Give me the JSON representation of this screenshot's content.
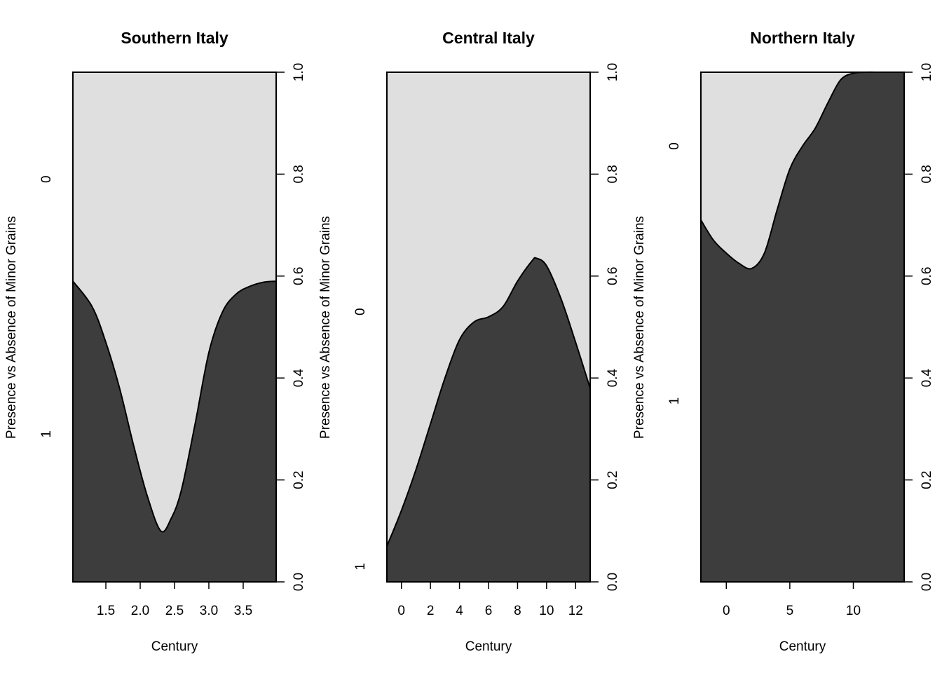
{
  "colors": {
    "absence_fill": "#dfdfdf",
    "presence_fill": "#3d3d3d",
    "outline": "#000000"
  },
  "chart_data": [
    {
      "type": "area",
      "title": "Southern Italy",
      "xlabel": "Century",
      "ylabel": "Presence vs Absence of Minor Grains",
      "xlim": [
        1.02,
        3.98
      ],
      "xticks": [
        "1.5",
        "2.0",
        "2.5",
        "3.0",
        "3.5"
      ],
      "ylim": [
        0,
        1
      ],
      "right_ticks": [
        "0.0",
        "0.2",
        "0.4",
        "0.6",
        "0.8",
        "1.0"
      ],
      "category_labels": [
        {
          "label": "0",
          "y": 0.79
        },
        {
          "label": "1",
          "y": 0.29
        }
      ],
      "x": [
        1.02,
        1.3,
        1.5,
        1.7,
        1.9,
        2.1,
        2.3,
        2.45,
        2.6,
        2.8,
        3.0,
        3.2,
        3.4,
        3.6,
        3.8,
        3.98
      ],
      "values": [
        0.59,
        0.54,
        0.47,
        0.38,
        0.27,
        0.17,
        0.1,
        0.124,
        0.18,
        0.31,
        0.45,
        0.53,
        0.565,
        0.58,
        0.588,
        0.59
      ]
    },
    {
      "type": "area",
      "title": "Central Italy",
      "xlabel": "Century",
      "ylabel": "Presence vs Absence of Minor Grains",
      "xlim": [
        -1,
        13
      ],
      "xticks": [
        "0",
        "2",
        "4",
        "6",
        "8",
        "10",
        "12"
      ],
      "ylim": [
        0,
        1
      ],
      "right_ticks": [
        "0.0",
        "0.2",
        "0.4",
        "0.6",
        "0.8",
        "1.0"
      ],
      "category_labels": [
        {
          "label": "0",
          "y": 0.53
        },
        {
          "label": "1",
          "y": 0.03
        }
      ],
      "x": [
        -1,
        0,
        1,
        2,
        3,
        4,
        5,
        6,
        7,
        8,
        9,
        9.3,
        10,
        11,
        12,
        13
      ],
      "values": [
        0.07,
        0.14,
        0.22,
        0.31,
        0.4,
        0.475,
        0.51,
        0.52,
        0.54,
        0.59,
        0.63,
        0.635,
        0.62,
        0.555,
        0.47,
        0.38
      ]
    },
    {
      "type": "area",
      "title": "Northern Italy",
      "xlabel": "Century",
      "ylabel": "Presence vs Absence of Minor Grains",
      "xlim": [
        -2,
        14
      ],
      "xticks": [
        "0",
        "5",
        "10"
      ],
      "ylim": [
        0,
        1
      ],
      "right_ticks": [
        "0.0",
        "0.2",
        "0.4",
        "0.6",
        "0.8",
        "1.0"
      ],
      "category_labels": [
        {
          "label": "0",
          "y": 0.855
        },
        {
          "label": "1",
          "y": 0.355
        }
      ],
      "x": [
        -2,
        -1,
        0,
        1,
        2,
        3,
        4,
        5,
        6,
        7,
        8,
        9,
        10,
        11,
        12,
        13,
        14
      ],
      "values": [
        0.71,
        0.67,
        0.645,
        0.625,
        0.615,
        0.645,
        0.73,
        0.81,
        0.855,
        0.89,
        0.94,
        0.985,
        0.998,
        1.0,
        1.0,
        1.0,
        1.0
      ]
    }
  ]
}
